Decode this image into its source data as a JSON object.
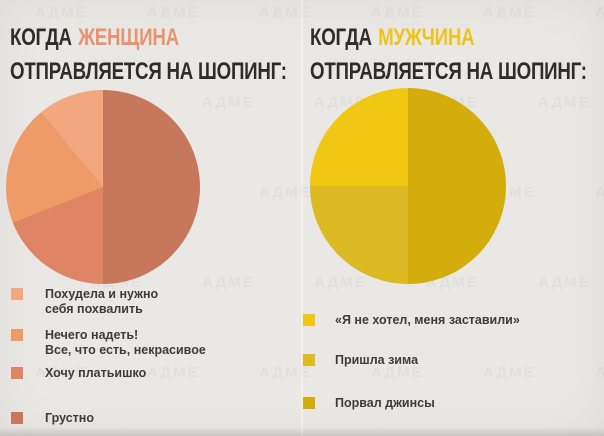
{
  "page": {
    "background_color": "#eae8e4",
    "watermark_text": "АДМЕ",
    "title_text_color": "#2e2d2b",
    "legend_text_color": "#3d3c3a"
  },
  "left_panel": {
    "title_prefix": "КОГДА",
    "title_subject": "ЖЕНЩИНА",
    "title_rest": "ОТПРАВЛЯЕТСЯ НА ШОПИНГ:",
    "accent": "#e9926e",
    "legend": [
      {
        "line1": "Похудела и нужно",
        "line2": "себя похвалить"
      },
      {
        "line1": "Нечего надеть!",
        "line2": "Все, что есть, некрасивое"
      },
      {
        "line1": "Хочу платьишко"
      },
      {
        "line1": "Грустно"
      }
    ]
  },
  "right_panel": {
    "title_prefix": "КОГДА",
    "title_subject": "МУЖЧИНА",
    "title_rest": "ОТПРАВЛЯЕТСЯ НА ШОПИНГ:",
    "accent": "#eec31a",
    "legend": [
      {
        "line1": "«Я не хотел, меня заставили»"
      },
      {
        "line1": "Пришла зима"
      },
      {
        "line1": "Порвал джинсы"
      }
    ]
  },
  "chart_data": [
    {
      "type": "pie",
      "title": "КОГДА ЖЕНЩИНА ОТПРАВЛЯЕТСЯ НА ШОПИНГ:",
      "labels": [
        "Похудела и нужно себя похвалить",
        "Нечего надеть! Все, что есть, некрасивое",
        "Хочу платьишко",
        "Грустно"
      ],
      "values": [
        11,
        20,
        19,
        50
      ],
      "colors": [
        "#f2a77f",
        "#ee9b67",
        "#e08466",
        "#c7775c"
      ],
      "legend_position": "below-left",
      "draw": {
        "start": "top",
        "direction": "clockwise",
        "segment_order": "last-legend-item-first"
      }
    },
    {
      "type": "pie",
      "title": "КОГДА МУЖЧИНА ОТПРАВЛЯЕТСЯ НА ШОПИНГ:",
      "labels": [
        "«Я не хотел, меня заставили»",
        "Пришла зима",
        "Порвал джинсы"
      ],
      "values": [
        25,
        25,
        50
      ],
      "colors": [
        "#f0c814",
        "#dcba24",
        "#d3ad0c"
      ],
      "legend_position": "below-left",
      "draw": {
        "start": "top",
        "direction": "clockwise",
        "segment_order": "last-legend-item-first"
      }
    }
  ]
}
